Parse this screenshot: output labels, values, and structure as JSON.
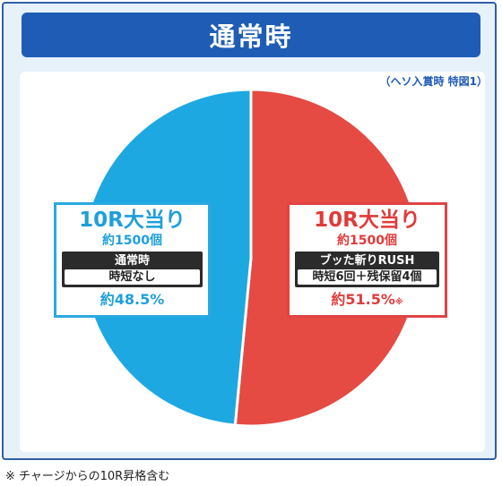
{
  "title": "通常時",
  "subnote": "（ヘソ入賞時 特図1）",
  "chart_data": {
    "type": "pie",
    "slices": [
      {
        "label": "10R大当り",
        "amount": "約1500個",
        "mode": "通常時",
        "detail": "時短なし",
        "value": 48.5,
        "pct_label": "約48.5%",
        "mark": "",
        "color": "#1ea8e2"
      },
      {
        "label": "10R大当り",
        "amount": "約1500個",
        "mode": "ブッた斬りRUSH",
        "detail": "時短6回＋残保留4個",
        "value": 51.5,
        "pct_label": "約51.5%",
        "mark": "※",
        "color": "#e54a43"
      }
    ]
  },
  "footnote": "※ チャージからの10R昇格含む"
}
